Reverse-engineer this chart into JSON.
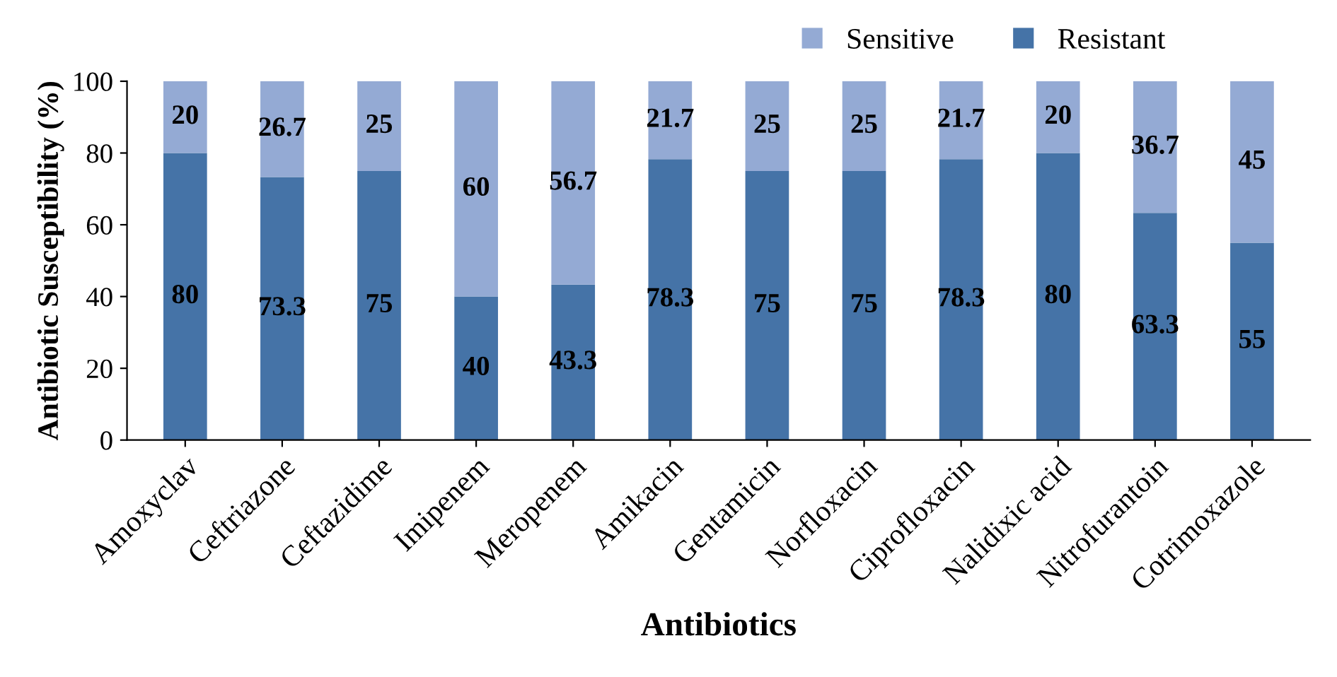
{
  "chart_data": {
    "type": "bar",
    "stacked": true,
    "xlabel": "Antibiotics",
    "ylabel": "Antibiotic Susceptibility (%)",
    "categories": [
      "Amoxyclav",
      "Ceftriazone",
      "Ceftazidime",
      "Imipenem",
      "Meropenem",
      "Amikacin",
      "Gentamicin",
      "Norfloxacin",
      "Ciprofloxacin",
      "Nalidixic acid",
      "Nitrofurantoin",
      "Cotrimoxazole"
    ],
    "series": [
      {
        "name": "Resistant",
        "color": "#4573a7",
        "values": [
          80,
          73.3,
          75,
          40,
          43.3,
          78.3,
          75,
          75,
          78.3,
          80,
          63.3,
          55
        ]
      },
      {
        "name": "Sensitive",
        "color": "#94aad4",
        "values": [
          20,
          26.7,
          25,
          60,
          56.7,
          21.7,
          25,
          25,
          21.7,
          20,
          36.7,
          45
        ]
      }
    ],
    "ylim": [
      0,
      100
    ],
    "yticks": [
      0,
      20,
      40,
      60,
      80,
      100
    ],
    "data_labels": true,
    "legend": "top right",
    "grid": false
  }
}
